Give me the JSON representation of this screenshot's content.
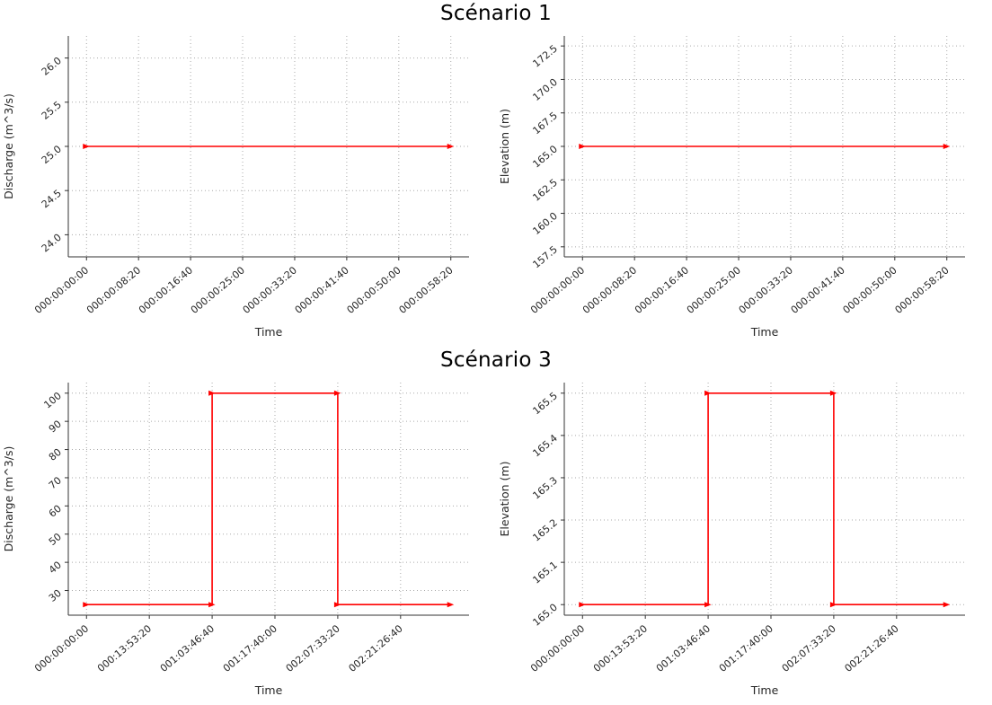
{
  "row_titles": [
    "Scénario 1",
    "Scénario 3"
  ],
  "style": {
    "line_color": "#ff0000",
    "grid_color": "#aaaaaa",
    "spine_color": "#333333",
    "text_color": "#262626",
    "title_color": "#000000",
    "background": "#ffffff"
  },
  "chart_data": [
    {
      "id": "scenario1-discharge",
      "type": "line",
      "title": "Scénario 1",
      "xlabel": "Time",
      "ylabel": "Discharge (m^3/s)",
      "grid": true,
      "legend": null,
      "xlim": [
        -175,
        3675
      ],
      "ylim": [
        23.75,
        26.25
      ],
      "x_ticks": [
        {
          "value": 0,
          "label": "000:00:00:00"
        },
        {
          "value": 500,
          "label": "000:00:08:20"
        },
        {
          "value": 1000,
          "label": "000:00:16:40"
        },
        {
          "value": 1500,
          "label": "000:00:25:00"
        },
        {
          "value": 2000,
          "label": "000:00:33:20"
        },
        {
          "value": 2500,
          "label": "000:00:41:40"
        },
        {
          "value": 3000,
          "label": "000:00:50:00"
        },
        {
          "value": 3500,
          "label": "000:00:58:20"
        }
      ],
      "y_ticks": [
        {
          "value": 24.0,
          "label": "24.0"
        },
        {
          "value": 24.5,
          "label": "24.5"
        },
        {
          "value": 25.0,
          "label": "25.0"
        },
        {
          "value": 25.5,
          "label": "25.5"
        },
        {
          "value": 26.0,
          "label": "26.0"
        }
      ],
      "series": [
        {
          "name": "Discharge",
          "points": [
            [
              0,
              25.0
            ],
            [
              3500,
              25.0
            ]
          ]
        }
      ]
    },
    {
      "id": "scenario1-elevation",
      "type": "line",
      "title": "Scénario 1",
      "xlabel": "Time",
      "ylabel": "Elevation (m)",
      "grid": true,
      "legend": null,
      "xlim": [
        -175,
        3675
      ],
      "ylim": [
        156.75,
        173.25
      ],
      "x_ticks": [
        {
          "value": 0,
          "label": "000:00:00:00"
        },
        {
          "value": 500,
          "label": "000:00:08:20"
        },
        {
          "value": 1000,
          "label": "000:00:16:40"
        },
        {
          "value": 1500,
          "label": "000:00:25:00"
        },
        {
          "value": 2000,
          "label": "000:00:33:20"
        },
        {
          "value": 2500,
          "label": "000:00:41:40"
        },
        {
          "value": 3000,
          "label": "000:00:50:00"
        },
        {
          "value": 3500,
          "label": "000:00:58:20"
        }
      ],
      "y_ticks": [
        {
          "value": 157.5,
          "label": "157.5"
        },
        {
          "value": 160.0,
          "label": "160.0"
        },
        {
          "value": 162.5,
          "label": "162.5"
        },
        {
          "value": 165.0,
          "label": "165.0"
        },
        {
          "value": 167.5,
          "label": "167.5"
        },
        {
          "value": 170.0,
          "label": "170.0"
        },
        {
          "value": 172.5,
          "label": "172.5"
        }
      ],
      "series": [
        {
          "name": "Elevation",
          "points": [
            [
              0,
              165.0
            ],
            [
              3500,
              165.0
            ]
          ]
        }
      ]
    },
    {
      "id": "scenario3-discharge",
      "type": "line",
      "title": "Scénario 3",
      "xlabel": "Time",
      "ylabel": "Discharge (m^3/s)",
      "grid": true,
      "legend": null,
      "xlim": [
        -14500,
        304500
      ],
      "ylim": [
        21.25,
        103.75
      ],
      "x_ticks": [
        {
          "value": 0,
          "label": "000:00:00:00"
        },
        {
          "value": 50000,
          "label": "000:13:53:20"
        },
        {
          "value": 100000,
          "label": "001:03:46:40"
        },
        {
          "value": 150000,
          "label": "001:17:40:00"
        },
        {
          "value": 200000,
          "label": "002:07:33:20"
        },
        {
          "value": 250000,
          "label": "002:21:26:40"
        }
      ],
      "y_ticks": [
        {
          "value": 30,
          "label": "30"
        },
        {
          "value": 40,
          "label": "40"
        },
        {
          "value": 50,
          "label": "50"
        },
        {
          "value": 60,
          "label": "60"
        },
        {
          "value": 70,
          "label": "70"
        },
        {
          "value": 80,
          "label": "80"
        },
        {
          "value": 90,
          "label": "90"
        },
        {
          "value": 100,
          "label": "100"
        }
      ],
      "series": [
        {
          "name": "Discharge",
          "points": [
            [
              0,
              25
            ],
            [
              100000,
              25
            ],
            [
              100000,
              100
            ],
            [
              200000,
              100
            ],
            [
              200000,
              25
            ],
            [
              290000,
              25
            ]
          ]
        }
      ]
    },
    {
      "id": "scenario3-elevation",
      "type": "line",
      "title": "Scénario 3",
      "xlabel": "Time",
      "ylabel": "Elevation (m)",
      "grid": true,
      "legend": null,
      "xlim": [
        -14500,
        304500
      ],
      "ylim": [
        164.975,
        165.525
      ],
      "x_ticks": [
        {
          "value": 0,
          "label": "000:00:00:00"
        },
        {
          "value": 50000,
          "label": "000:13:53:20"
        },
        {
          "value": 100000,
          "label": "001:03:46:40"
        },
        {
          "value": 150000,
          "label": "001:17:40:00"
        },
        {
          "value": 200000,
          "label": "002:07:33:20"
        },
        {
          "value": 250000,
          "label": "002:21:26:40"
        }
      ],
      "y_ticks": [
        {
          "value": 165.0,
          "label": "165.0"
        },
        {
          "value": 165.1,
          "label": "165.1"
        },
        {
          "value": 165.2,
          "label": "165.2"
        },
        {
          "value": 165.3,
          "label": "165.3"
        },
        {
          "value": 165.4,
          "label": "165.4"
        },
        {
          "value": 165.5,
          "label": "165.5"
        }
      ],
      "series": [
        {
          "name": "Elevation",
          "points": [
            [
              0,
              165.0
            ],
            [
              100000,
              165.0
            ],
            [
              100000,
              165.5
            ],
            [
              200000,
              165.5
            ],
            [
              200000,
              165.0
            ],
            [
              290000,
              165.0
            ]
          ]
        }
      ]
    }
  ]
}
